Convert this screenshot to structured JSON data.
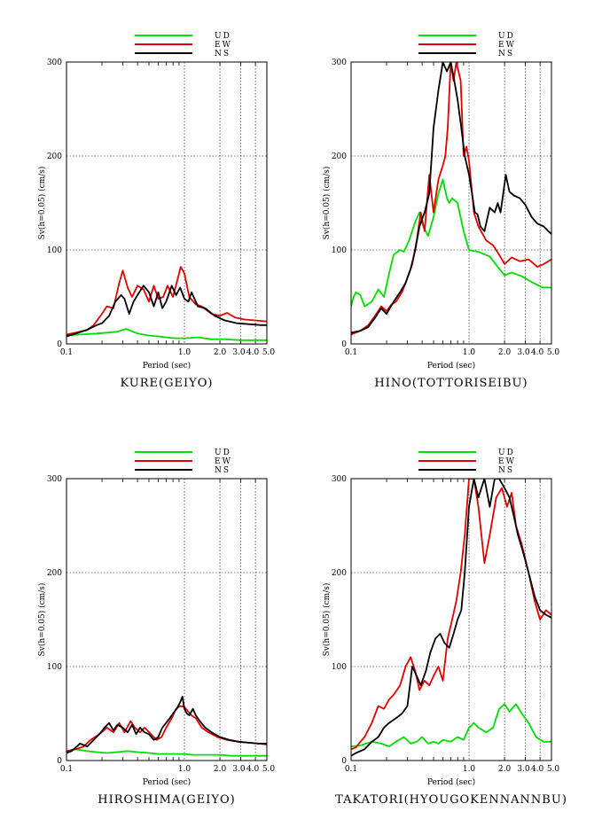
{
  "chart_data": [
    {
      "type": "line",
      "site": "KURE(GEIYO)",
      "xlabel": "Period (sec)",
      "ylabel": "Sv(h=0.05) (cm/s)",
      "xscale": "log",
      "xlim": [
        0.1,
        5.0
      ],
      "ylim": [
        0,
        300
      ],
      "yticks": [
        "0",
        "100",
        "200",
        "300"
      ],
      "xticks": [
        {
          "value": 0.1,
          "label": "0.1"
        },
        {
          "value": 1.0,
          "label": "1.0"
        },
        {
          "value": 2.0,
          "label": "2.0"
        },
        {
          "value": 3.0,
          "label": "3.0"
        },
        {
          "value": 4.0,
          "label": "4.0"
        },
        {
          "value": 5.0,
          "label": "5.0"
        }
      ],
      "grid": true,
      "legend": "top-right",
      "series": [
        {
          "name": "UD",
          "color": "#00dd00",
          "x": [
            0.1,
            0.13,
            0.18,
            0.22,
            0.27,
            0.32,
            0.4,
            0.5,
            0.6,
            0.7,
            0.85,
            1.0,
            1.3,
            1.7,
            2.2,
            3.0,
            4.0,
            5.0
          ],
          "y": [
            9,
            10,
            11,
            12,
            13,
            16,
            11,
            9,
            8,
            7,
            6,
            6,
            7,
            5,
            5,
            4,
            4,
            4
          ]
        },
        {
          "name": "EW",
          "color": "#e00000",
          "x": [
            0.1,
            0.12,
            0.15,
            0.17,
            0.2,
            0.22,
            0.25,
            0.28,
            0.3,
            0.33,
            0.36,
            0.4,
            0.45,
            0.5,
            0.55,
            0.6,
            0.66,
            0.72,
            0.8,
            0.88,
            0.93,
            1.0,
            1.1,
            1.25,
            1.4,
            1.7,
            2.0,
            2.3,
            2.7,
            3.2,
            4.0,
            5.0
          ],
          "y": [
            10,
            12,
            15,
            20,
            32,
            40,
            38,
            65,
            78,
            60,
            50,
            62,
            58,
            45,
            62,
            48,
            50,
            62,
            50,
            70,
            82,
            75,
            50,
            42,
            40,
            32,
            30,
            33,
            28,
            26,
            25,
            24
          ]
        },
        {
          "name": "NS",
          "color": "#000000",
          "x": [
            0.1,
            0.12,
            0.15,
            0.18,
            0.2,
            0.23,
            0.26,
            0.29,
            0.31,
            0.34,
            0.37,
            0.4,
            0.45,
            0.5,
            0.55,
            0.6,
            0.65,
            0.7,
            0.78,
            0.85,
            0.92,
            1.0,
            1.08,
            1.15,
            1.3,
            1.5,
            1.8,
            2.2,
            2.8,
            3.5,
            4.5,
            5.0
          ],
          "y": [
            8,
            11,
            15,
            20,
            22,
            30,
            45,
            52,
            48,
            32,
            45,
            52,
            62,
            55,
            40,
            55,
            38,
            45,
            62,
            52,
            60,
            48,
            45,
            55,
            40,
            38,
            30,
            25,
            22,
            21,
            20,
            20
          ]
        }
      ]
    },
    {
      "type": "line",
      "site": "HINO(TOTTORISEIBU)",
      "xlabel": "Period (sec)",
      "ylabel": "Sv(h=0.05) (cm/s)",
      "xscale": "log",
      "xlim": [
        0.1,
        5.0
      ],
      "ylim": [
        0,
        300
      ],
      "yticks": [
        "0",
        "100",
        "200",
        "300"
      ],
      "xticks": [
        {
          "value": 0.1,
          "label": "0.1"
        },
        {
          "value": 1.0,
          "label": "1.0"
        },
        {
          "value": 2.0,
          "label": "2.0"
        },
        {
          "value": 3.0,
          "label": "3.0"
        },
        {
          "value": 4.0,
          "label": "4.0"
        },
        {
          "value": 5.0,
          "label": "5.0"
        }
      ],
      "grid": true,
      "legend": "top-right",
      "series": [
        {
          "name": "UD",
          "color": "#00dd00",
          "x": [
            0.1,
            0.105,
            0.11,
            0.12,
            0.13,
            0.15,
            0.17,
            0.19,
            0.21,
            0.23,
            0.26,
            0.28,
            0.31,
            0.35,
            0.38,
            0.41,
            0.45,
            0.5,
            0.55,
            0.6,
            0.65,
            0.68,
            0.72,
            0.8,
            0.9,
            1.0,
            1.2,
            1.5,
            1.8,
            2.0,
            2.3,
            2.8,
            3.5,
            4.2,
            5.0
          ],
          "y": [
            40,
            50,
            55,
            52,
            40,
            45,
            58,
            50,
            75,
            95,
            100,
            98,
            110,
            130,
            140,
            125,
            115,
            135,
            160,
            175,
            155,
            150,
            155,
            150,
            120,
            100,
            98,
            93,
            80,
            73,
            76,
            72,
            65,
            60,
            60
          ]
        },
        {
          "name": "EW",
          "color": "#e00000",
          "x": [
            0.1,
            0.12,
            0.14,
            0.16,
            0.18,
            0.2,
            0.22,
            0.24,
            0.27,
            0.3,
            0.33,
            0.36,
            0.39,
            0.42,
            0.46,
            0.5,
            0.55,
            0.6,
            0.63,
            0.66,
            0.7,
            0.74,
            0.78,
            0.85,
            0.9,
            0.95,
            1.0,
            1.1,
            1.2,
            1.4,
            1.6,
            1.8,
            2.0,
            2.3,
            2.7,
            3.2,
            3.8,
            4.3,
            5.0
          ],
          "y": [
            10,
            14,
            20,
            30,
            40,
            35,
            42,
            45,
            55,
            70,
            85,
            110,
            140,
            120,
            180,
            140,
            175,
            190,
            200,
            230,
            300,
            280,
            300,
            280,
            200,
            210,
            195,
            140,
            125,
            110,
            105,
            95,
            85,
            92,
            88,
            90,
            82,
            85,
            90
          ]
        },
        {
          "name": "NS",
          "color": "#000000",
          "x": [
            0.1,
            0.12,
            0.14,
            0.16,
            0.18,
            0.2,
            0.23,
            0.26,
            0.29,
            0.32,
            0.35,
            0.38,
            0.42,
            0.46,
            0.5,
            0.55,
            0.6,
            0.65,
            0.7,
            0.75,
            0.8,
            0.86,
            0.92,
            1.0,
            1.06,
            1.12,
            1.18,
            1.25,
            1.35,
            1.5,
            1.65,
            1.75,
            1.85,
            1.95,
            2.05,
            2.2,
            2.4,
            2.7,
            3.0,
            3.4,
            3.8,
            4.3,
            4.7,
            5.0
          ],
          "y": [
            12,
            14,
            18,
            28,
            38,
            32,
            45,
            55,
            65,
            80,
            100,
            125,
            140,
            160,
            230,
            270,
            300,
            290,
            300,
            280,
            260,
            230,
            200,
            180,
            160,
            140,
            138,
            125,
            120,
            145,
            140,
            150,
            140,
            160,
            180,
            162,
            158,
            155,
            148,
            135,
            128,
            125,
            120,
            117
          ]
        }
      ]
    },
    {
      "type": "line",
      "site": "HIROSHIMA(GEIYO)",
      "xlabel": "Period (sec)",
      "ylabel": "Sv(h=0.05) (cm/s)",
      "xscale": "log",
      "xlim": [
        0.1,
        5.0
      ],
      "ylim": [
        0,
        300
      ],
      "yticks": [
        "0",
        "100",
        "200",
        "300"
      ],
      "xticks": [
        {
          "value": 0.1,
          "label": "0.1"
        },
        {
          "value": 1.0,
          "label": "1.0"
        },
        {
          "value": 2.0,
          "label": "2.0"
        },
        {
          "value": 3.0,
          "label": "3.0"
        },
        {
          "value": 4.0,
          "label": "4.0"
        },
        {
          "value": 5.0,
          "label": "5.0"
        }
      ],
      "grid": true,
      "legend": "top-right",
      "series": [
        {
          "name": "UD",
          "color": "#00dd00",
          "x": [
            0.1,
            0.12,
            0.15,
            0.18,
            0.22,
            0.27,
            0.33,
            0.4,
            0.5,
            0.6,
            0.75,
            0.9,
            1.0,
            1.2,
            1.5,
            2.0,
            2.5,
            3.2,
            4.0,
            5.0
          ],
          "y": [
            10,
            12,
            10,
            9,
            8,
            9,
            10,
            9,
            8,
            7,
            7,
            7,
            7,
            6,
            6,
            6,
            5,
            5,
            5,
            5
          ]
        },
        {
          "name": "EW",
          "color": "#e00000",
          "x": [
            0.1,
            0.12,
            0.14,
            0.16,
            0.19,
            0.22,
            0.25,
            0.28,
            0.31,
            0.35,
            0.38,
            0.42,
            0.46,
            0.52,
            0.58,
            0.64,
            0.7,
            0.78,
            0.85,
            0.92,
            1.0,
            1.08,
            1.15,
            1.25,
            1.4,
            1.6,
            1.9,
            2.3,
            2.8,
            3.5,
            4.3,
            5.0
          ],
          "y": [
            10,
            12,
            15,
            22,
            28,
            35,
            30,
            40,
            30,
            42,
            35,
            30,
            35,
            28,
            22,
            25,
            35,
            45,
            55,
            58,
            57,
            52,
            48,
            45,
            35,
            30,
            25,
            22,
            20,
            19,
            18,
            17
          ]
        },
        {
          "name": "NS",
          "color": "#000000",
          "x": [
            0.1,
            0.11,
            0.12,
            0.13,
            0.15,
            0.17,
            0.19,
            0.21,
            0.23,
            0.25,
            0.27,
            0.3,
            0.33,
            0.36,
            0.39,
            0.42,
            0.46,
            0.5,
            0.55,
            0.6,
            0.65,
            0.7,
            0.75,
            0.8,
            0.86,
            0.92,
            0.96,
            1.0,
            1.05,
            1.1,
            1.18,
            1.25,
            1.35,
            1.5,
            1.7,
            2.0,
            2.4,
            2.9,
            3.5,
            4.2,
            5.0
          ],
          "y": [
            8,
            10,
            14,
            18,
            15,
            22,
            28,
            35,
            40,
            32,
            38,
            35,
            30,
            38,
            28,
            35,
            30,
            28,
            22,
            25,
            35,
            40,
            45,
            50,
            55,
            62,
            68,
            55,
            50,
            48,
            55,
            48,
            42,
            35,
            30,
            25,
            22,
            20,
            19,
            18,
            18
          ]
        }
      ]
    },
    {
      "type": "line",
      "site": "TAKATORI(HYOUGOKENNANNBU)",
      "xlabel": "Period (sec)",
      "ylabel": "Sv(h=0.05) (cm/s)",
      "xscale": "log",
      "xlim": [
        0.1,
        5.0
      ],
      "ylim": [
        0,
        300
      ],
      "yticks": [
        "0",
        "100",
        "200",
        "300"
      ],
      "xticks": [
        {
          "value": 0.1,
          "label": "0.1"
        },
        {
          "value": 1.0,
          "label": "1.0"
        },
        {
          "value": 2.0,
          "label": "2.0"
        },
        {
          "value": 3.0,
          "label": "3.0"
        },
        {
          "value": 4.0,
          "label": "4.0"
        },
        {
          "value": 5.0,
          "label": "5.0"
        }
      ],
      "grid": true,
      "legend": "top-right",
      "series": [
        {
          "name": "UD",
          "color": "#00dd00",
          "x": [
            0.1,
            0.12,
            0.15,
            0.18,
            0.21,
            0.24,
            0.28,
            0.32,
            0.36,
            0.4,
            0.45,
            0.5,
            0.55,
            0.6,
            0.7,
            0.8,
            0.9,
            1.0,
            1.1,
            1.2,
            1.4,
            1.6,
            1.8,
            2.0,
            2.2,
            2.5,
            2.8,
            3.2,
            3.7,
            4.3,
            5.0
          ],
          "y": [
            15,
            16,
            20,
            18,
            15,
            20,
            25,
            18,
            20,
            25,
            18,
            20,
            18,
            22,
            20,
            25,
            22,
            35,
            40,
            35,
            30,
            35,
            55,
            60,
            52,
            60,
            50,
            40,
            25,
            20,
            20
          ]
        },
        {
          "name": "EW",
          "color": "#e00000",
          "x": [
            0.1,
            0.11,
            0.12,
            0.13,
            0.15,
            0.17,
            0.19,
            0.21,
            0.23,
            0.26,
            0.29,
            0.32,
            0.35,
            0.38,
            0.42,
            0.46,
            0.5,
            0.55,
            0.6,
            0.66,
            0.72,
            0.78,
            0.85,
            0.92,
            1.0,
            1.1,
            1.2,
            1.35,
            1.5,
            1.7,
            1.9,
            2.1,
            2.3,
            2.5,
            2.8,
            3.2,
            3.6,
            4.0,
            4.5,
            5.0
          ],
          "y": [
            12,
            14,
            20,
            25,
            40,
            58,
            55,
            65,
            70,
            80,
            100,
            110,
            95,
            75,
            85,
            80,
            90,
            100,
            85,
            130,
            150,
            170,
            200,
            240,
            300,
            300,
            270,
            210,
            240,
            280,
            290,
            270,
            285,
            250,
            230,
            200,
            170,
            150,
            160,
            155
          ]
        },
        {
          "name": "NS",
          "color": "#000000",
          "x": [
            0.1,
            0.11,
            0.13,
            0.15,
            0.17,
            0.19,
            0.21,
            0.24,
            0.27,
            0.3,
            0.33,
            0.36,
            0.39,
            0.43,
            0.47,
            0.52,
            0.57,
            0.62,
            0.68,
            0.74,
            0.8,
            0.86,
            0.92,
            1.0,
            1.1,
            1.2,
            1.35,
            1.5,
            1.65,
            1.8,
            2.0,
            2.2,
            2.4,
            2.6,
            2.9,
            3.2,
            3.6,
            4.0,
            4.5,
            5.0
          ],
          "y": [
            5,
            8,
            12,
            20,
            25,
            35,
            40,
            45,
            50,
            58,
            100,
            90,
            80,
            95,
            115,
            130,
            135,
            125,
            120,
            135,
            150,
            160,
            200,
            270,
            300,
            280,
            300,
            270,
            300,
            300,
            290,
            280,
            260,
            240,
            220,
            200,
            175,
            160,
            155,
            152
          ]
        }
      ]
    }
  ]
}
